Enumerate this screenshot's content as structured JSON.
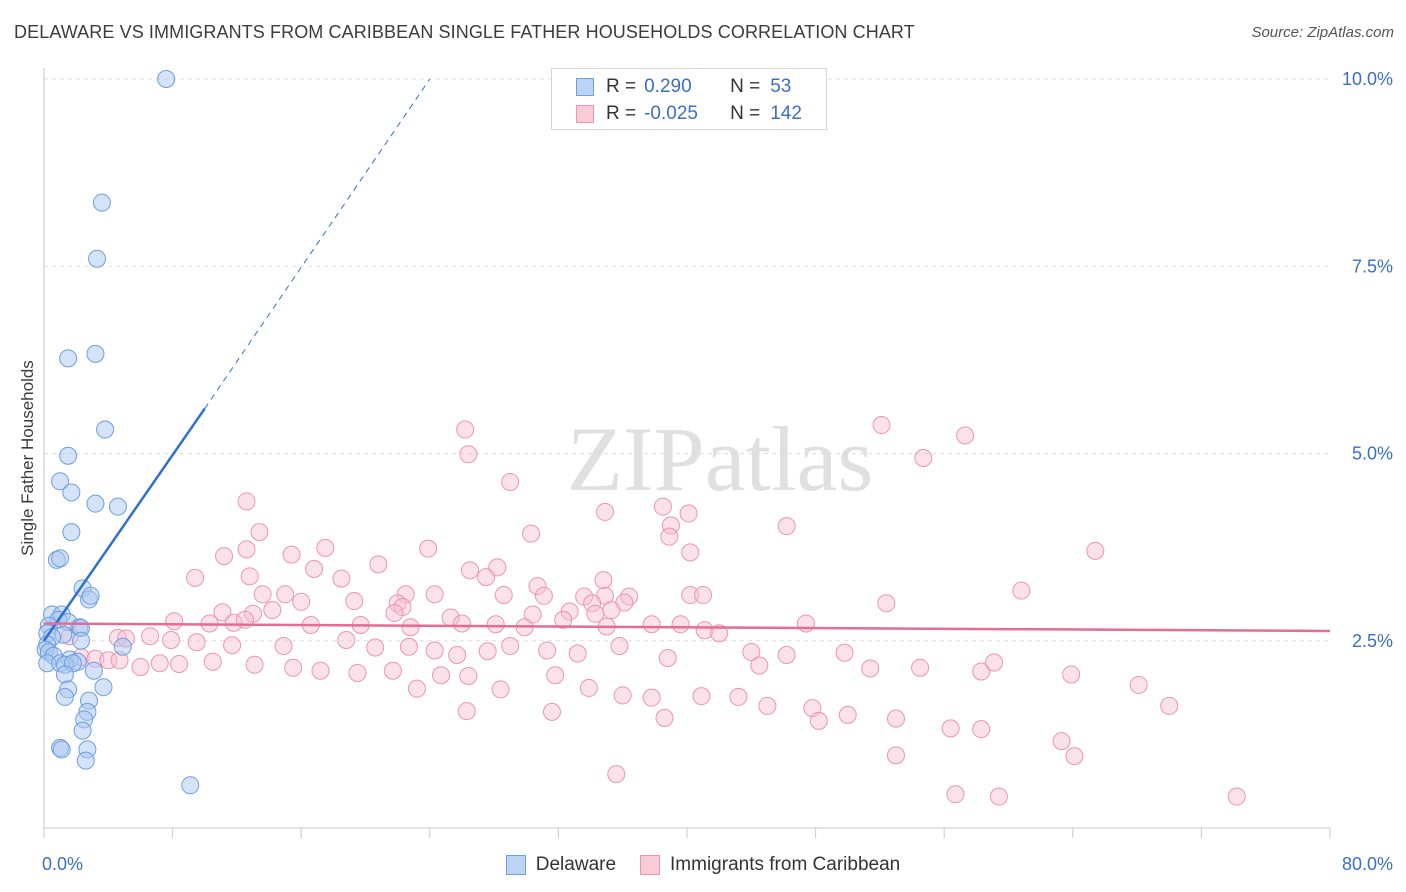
{
  "chart_data": {
    "type": "scatter",
    "title": "DELAWARE VS IMMIGRANTS FROM CARIBBEAN SINGLE FATHER HOUSEHOLDS CORRELATION CHART",
    "source": "Source: ZipAtlas.com",
    "ylabel": "Single Father Households",
    "xlim": [
      0,
      80
    ],
    "ylim": [
      0,
      10
    ],
    "x_tick_labels": [
      "0.0%",
      "80.0%"
    ],
    "y_ticks": [
      2.5,
      5.0,
      7.5,
      10.0
    ],
    "y_tick_labels": [
      "2.5%",
      "5.0%",
      "7.5%",
      "10.0%"
    ],
    "watermark": "ZIPatlas",
    "colors": {
      "delaware_fill": "#aac8f0",
      "delaware_stroke": "#6d9ee0",
      "delaware_line": "#2f6fd0",
      "caribbean_fill": "#f6bfd0",
      "caribbean_stroke": "#ec94b2",
      "caribbean_line": "#e46c95",
      "tick_label": "#3a6fc4"
    },
    "legend": [
      {
        "r_label": "R =",
        "r_value": "0.290",
        "n_label": "N =",
        "n_value": "53"
      },
      {
        "r_label": "R =",
        "r_value": "-0.025",
        "n_label": "N =",
        "n_value": "142"
      }
    ],
    "series": [
      {
        "name": "Delaware",
        "trend": {
          "x0": 0.0,
          "y0": 2.5,
          "x1": 10.0,
          "y1": 5.6,
          "dash_x1": 24.0,
          "dash_y1": 10.0
        },
        "points": [
          [
            7.6,
            10.0
          ],
          [
            3.6,
            8.35
          ],
          [
            3.3,
            7.6
          ],
          [
            1.5,
            6.27
          ],
          [
            3.2,
            6.33
          ],
          [
            3.8,
            5.32
          ],
          [
            1.5,
            4.97
          ],
          [
            1.0,
            4.63
          ],
          [
            1.7,
            4.48
          ],
          [
            3.2,
            4.33
          ],
          [
            4.6,
            4.29
          ],
          [
            1.7,
            3.95
          ],
          [
            0.8,
            3.58
          ],
          [
            1.0,
            3.6
          ],
          [
            2.4,
            3.2
          ],
          [
            2.8,
            3.05
          ],
          [
            2.9,
            3.1
          ],
          [
            0.5,
            2.85
          ],
          [
            1.1,
            2.85
          ],
          [
            0.9,
            2.78
          ],
          [
            0.3,
            2.7
          ],
          [
            1.5,
            2.75
          ],
          [
            2.2,
            2.68
          ],
          [
            2.3,
            2.67
          ],
          [
            0.2,
            2.6
          ],
          [
            1.2,
            2.58
          ],
          [
            0.5,
            2.55
          ],
          [
            2.3,
            2.5
          ],
          [
            0.2,
            2.45
          ],
          [
            4.9,
            2.42
          ],
          [
            0.1,
            2.38
          ],
          [
            0.3,
            2.35
          ],
          [
            0.6,
            2.3
          ],
          [
            1.6,
            2.25
          ],
          [
            2.1,
            2.22
          ],
          [
            0.2,
            2.2
          ],
          [
            1.0,
            2.2
          ],
          [
            1.3,
            2.18
          ],
          [
            1.8,
            2.2
          ],
          [
            3.1,
            2.1
          ],
          [
            1.3,
            2.05
          ],
          [
            1.5,
            1.85
          ],
          [
            3.7,
            1.88
          ],
          [
            1.3,
            1.75
          ],
          [
            2.8,
            1.7
          ],
          [
            2.7,
            1.55
          ],
          [
            2.5,
            1.45
          ],
          [
            2.4,
            1.3
          ],
          [
            1.0,
            1.07
          ],
          [
            1.1,
            1.05
          ],
          [
            2.7,
            1.05
          ],
          [
            2.6,
            0.9
          ],
          [
            9.1,
            0.57
          ]
        ]
      },
      {
        "name": "Immigrants from Caribbean",
        "trend": {
          "x0": 0.0,
          "y0": 2.73,
          "x1": 80.0,
          "y1": 2.63
        },
        "points": [
          [
            52.1,
            5.38
          ],
          [
            57.3,
            5.24
          ],
          [
            26.2,
            5.32
          ],
          [
            26.4,
            4.99
          ],
          [
            54.7,
            4.94
          ],
          [
            29.0,
            4.62
          ],
          [
            12.6,
            4.36
          ],
          [
            34.9,
            4.22
          ],
          [
            38.5,
            4.29
          ],
          [
            40.1,
            4.2
          ],
          [
            30.3,
            3.93
          ],
          [
            39.0,
            4.04
          ],
          [
            13.4,
            3.95
          ],
          [
            46.2,
            4.03
          ],
          [
            38.9,
            3.89
          ],
          [
            17.5,
            3.74
          ],
          [
            11.2,
            3.63
          ],
          [
            12.6,
            3.72
          ],
          [
            15.4,
            3.65
          ],
          [
            23.9,
            3.73
          ],
          [
            40.2,
            3.68
          ],
          [
            65.4,
            3.7
          ],
          [
            9.4,
            3.34
          ],
          [
            12.8,
            3.36
          ],
          [
            16.8,
            3.46
          ],
          [
            18.5,
            3.33
          ],
          [
            20.8,
            3.52
          ],
          [
            28.2,
            3.48
          ],
          [
            26.5,
            3.44
          ],
          [
            27.5,
            3.35
          ],
          [
            30.7,
            3.23
          ],
          [
            34.8,
            3.31
          ],
          [
            13.6,
            3.12
          ],
          [
            15.0,
            3.12
          ],
          [
            22.5,
            3.12
          ],
          [
            19.3,
            3.03
          ],
          [
            16.0,
            3.02
          ],
          [
            22.0,
            3.0
          ],
          [
            22.3,
            2.95
          ],
          [
            28.6,
            3.11
          ],
          [
            31.1,
            3.1
          ],
          [
            33.6,
            3.09
          ],
          [
            34.9,
            3.1
          ],
          [
            36.4,
            3.09
          ],
          [
            24.3,
            3.12
          ],
          [
            34.1,
            3.0
          ],
          [
            36.1,
            3.01
          ],
          [
            40.2,
            3.11
          ],
          [
            41.0,
            3.11
          ],
          [
            52.4,
            3.0
          ],
          [
            60.8,
            3.17
          ],
          [
            35.3,
            2.91
          ],
          [
            32.7,
            2.89
          ],
          [
            21.8,
            2.87
          ],
          [
            11.1,
            2.88
          ],
          [
            13.0,
            2.86
          ],
          [
            14.2,
            2.91
          ],
          [
            25.3,
            2.81
          ],
          [
            30.4,
            2.85
          ],
          [
            32.3,
            2.78
          ],
          [
            34.3,
            2.86
          ],
          [
            35.0,
            2.69
          ],
          [
            37.8,
            2.72
          ],
          [
            39.6,
            2.72
          ],
          [
            22.8,
            2.68
          ],
          [
            19.7,
            2.71
          ],
          [
            8.1,
            2.76
          ],
          [
            10.3,
            2.73
          ],
          [
            11.8,
            2.74
          ],
          [
            12.5,
            2.78
          ],
          [
            16.6,
            2.71
          ],
          [
            26.0,
            2.73
          ],
          [
            28.1,
            2.72
          ],
          [
            29.9,
            2.68
          ],
          [
            41.1,
            2.64
          ],
          [
            42.0,
            2.6
          ],
          [
            47.4,
            2.73
          ],
          [
            1.6,
            2.56
          ],
          [
            4.6,
            2.54
          ],
          [
            5.1,
            2.53
          ],
          [
            6.6,
            2.56
          ],
          [
            7.9,
            2.51
          ],
          [
            9.5,
            2.48
          ],
          [
            11.7,
            2.44
          ],
          [
            14.9,
            2.43
          ],
          [
            18.8,
            2.51
          ],
          [
            20.6,
            2.41
          ],
          [
            22.7,
            2.42
          ],
          [
            24.3,
            2.37
          ],
          [
            25.7,
            2.31
          ],
          [
            27.6,
            2.36
          ],
          [
            29.0,
            2.43
          ],
          [
            31.3,
            2.37
          ],
          [
            33.2,
            2.33
          ],
          [
            35.8,
            2.43
          ],
          [
            38.8,
            2.27
          ],
          [
            44.0,
            2.35
          ],
          [
            44.5,
            2.17
          ],
          [
            46.2,
            2.31
          ],
          [
            49.8,
            2.34
          ],
          [
            51.4,
            2.13
          ],
          [
            54.5,
            2.14
          ],
          [
            58.3,
            2.09
          ],
          [
            59.1,
            2.21
          ],
          [
            63.9,
            2.05
          ],
          [
            2.3,
            2.28
          ],
          [
            3.2,
            2.26
          ],
          [
            4.0,
            2.24
          ],
          [
            4.7,
            2.24
          ],
          [
            6.0,
            2.15
          ],
          [
            7.2,
            2.2
          ],
          [
            8.4,
            2.19
          ],
          [
            10.5,
            2.22
          ],
          [
            13.1,
            2.18
          ],
          [
            15.5,
            2.14
          ],
          [
            17.2,
            2.1
          ],
          [
            19.5,
            2.07
          ],
          [
            21.7,
            2.1
          ],
          [
            23.2,
            1.86
          ],
          [
            24.7,
            2.04
          ],
          [
            26.4,
            2.03
          ],
          [
            28.4,
            1.85
          ],
          [
            31.8,
            2.04
          ],
          [
            33.9,
            1.87
          ],
          [
            36.0,
            1.77
          ],
          [
            37.8,
            1.74
          ],
          [
            40.9,
            1.76
          ],
          [
            43.2,
            1.75
          ],
          [
            45.0,
            1.63
          ],
          [
            47.8,
            1.6
          ],
          [
            50.0,
            1.51
          ],
          [
            53.0,
            1.46
          ],
          [
            56.4,
            1.33
          ],
          [
            58.3,
            1.32
          ],
          [
            63.3,
            1.16
          ],
          [
            68.1,
            1.91
          ],
          [
            70.0,
            1.63
          ],
          [
            26.3,
            1.56
          ],
          [
            31.6,
            1.55
          ],
          [
            38.6,
            1.47
          ],
          [
            48.2,
            1.43
          ],
          [
            53.0,
            0.97
          ],
          [
            64.1,
            0.96
          ],
          [
            35.6,
            0.72
          ],
          [
            56.7,
            0.45
          ],
          [
            59.4,
            0.42
          ],
          [
            74.2,
            0.42
          ]
        ]
      }
    ]
  }
}
